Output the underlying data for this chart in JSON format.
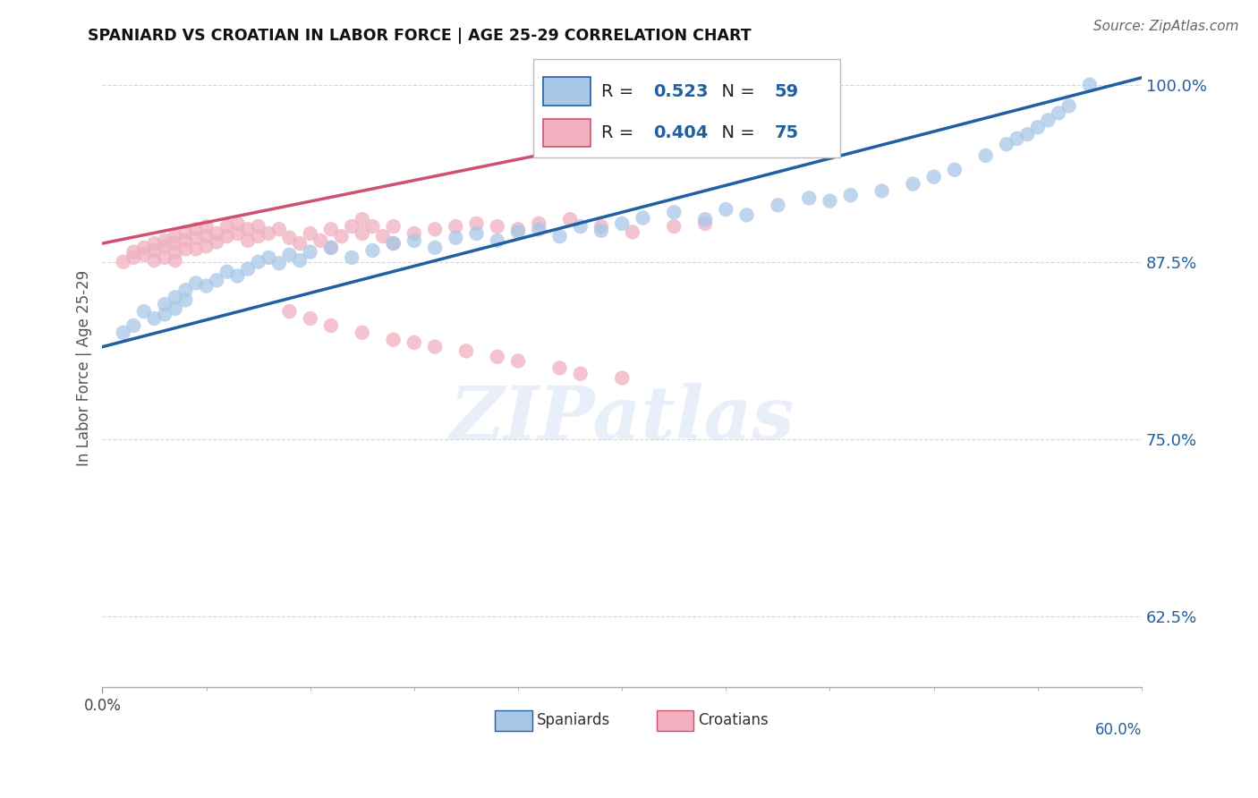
{
  "title": "SPANIARD VS CROATIAN IN LABOR FORCE | AGE 25-29 CORRELATION CHART",
  "source": "Source: ZipAtlas.com",
  "ylabel": "In Labor Force | Age 25-29",
  "xlim": [
    0.0,
    1.0
  ],
  "ylim": [
    0.575,
    1.025
  ],
  "yticks": [
    0.625,
    0.75,
    0.875,
    1.0
  ],
  "ytick_labels": [
    "62.5%",
    "75.0%",
    "87.5%",
    "100.0%"
  ],
  "background_color": "#ffffff",
  "grid_color": "#cccccc",
  "spaniards_color": "#a8c8e8",
  "croatians_color": "#f0b0c0",
  "spaniards_line_color": "#2060a0",
  "croatians_line_color": "#d05070",
  "R_spaniards": "0.523",
  "N_spaniards": "59",
  "R_croatians": "0.404",
  "N_croatians": "75",
  "legend_label_spaniards": "Spaniards",
  "legend_label_croatians": "Croatians",
  "watermark_text": "ZIPatlas",
  "spaniards_x": [
    0.02,
    0.03,
    0.04,
    0.05,
    0.06,
    0.06,
    0.07,
    0.07,
    0.08,
    0.08,
    0.09,
    0.1,
    0.11,
    0.12,
    0.13,
    0.14,
    0.15,
    0.16,
    0.17,
    0.18,
    0.19,
    0.2,
    0.22,
    0.24,
    0.26,
    0.28,
    0.3,
    0.32,
    0.34,
    0.36,
    0.38,
    0.4,
    0.42,
    0.44,
    0.46,
    0.48,
    0.5,
    0.52,
    0.55,
    0.58,
    0.6,
    0.62,
    0.65,
    0.68,
    0.7,
    0.72,
    0.75,
    0.78,
    0.8,
    0.82,
    0.85,
    0.87,
    0.88,
    0.89,
    0.9,
    0.91,
    0.92,
    0.93,
    0.95
  ],
  "spaniards_y": [
    0.825,
    0.83,
    0.84,
    0.835,
    0.845,
    0.838,
    0.85,
    0.842,
    0.848,
    0.855,
    0.86,
    0.858,
    0.862,
    0.868,
    0.865,
    0.87,
    0.875,
    0.878,
    0.874,
    0.88,
    0.876,
    0.882,
    0.885,
    0.878,
    0.883,
    0.888,
    0.89,
    0.885,
    0.892,
    0.895,
    0.89,
    0.896,
    0.898,
    0.893,
    0.9,
    0.897,
    0.902,
    0.906,
    0.91,
    0.905,
    0.912,
    0.908,
    0.915,
    0.92,
    0.918,
    0.922,
    0.925,
    0.93,
    0.935,
    0.94,
    0.95,
    0.958,
    0.962,
    0.965,
    0.97,
    0.975,
    0.98,
    0.985,
    1.0
  ],
  "croatians_x": [
    0.02,
    0.03,
    0.03,
    0.04,
    0.04,
    0.05,
    0.05,
    0.05,
    0.06,
    0.06,
    0.06,
    0.07,
    0.07,
    0.07,
    0.07,
    0.08,
    0.08,
    0.08,
    0.09,
    0.09,
    0.09,
    0.1,
    0.1,
    0.1,
    0.11,
    0.11,
    0.12,
    0.12,
    0.13,
    0.13,
    0.14,
    0.14,
    0.15,
    0.15,
    0.16,
    0.17,
    0.18,
    0.19,
    0.2,
    0.21,
    0.22,
    0.22,
    0.23,
    0.24,
    0.25,
    0.25,
    0.26,
    0.27,
    0.28,
    0.28,
    0.3,
    0.32,
    0.34,
    0.36,
    0.38,
    0.4,
    0.42,
    0.45,
    0.48,
    0.51,
    0.55,
    0.58,
    0.18,
    0.2,
    0.22,
    0.25,
    0.28,
    0.3,
    0.32,
    0.35,
    0.38,
    0.4,
    0.44,
    0.46,
    0.5
  ],
  "croatians_y": [
    0.875,
    0.878,
    0.882,
    0.885,
    0.88,
    0.888,
    0.883,
    0.876,
    0.89,
    0.886,
    0.878,
    0.893,
    0.888,
    0.882,
    0.876,
    0.896,
    0.89,
    0.884,
    0.898,
    0.892,
    0.884,
    0.9,
    0.893,
    0.886,
    0.895,
    0.889,
    0.9,
    0.893,
    0.902,
    0.895,
    0.898,
    0.89,
    0.9,
    0.893,
    0.895,
    0.898,
    0.892,
    0.888,
    0.895,
    0.89,
    0.898,
    0.885,
    0.893,
    0.9,
    0.905,
    0.895,
    0.9,
    0.893,
    0.9,
    0.888,
    0.895,
    0.898,
    0.9,
    0.902,
    0.9,
    0.898,
    0.902,
    0.905,
    0.9,
    0.896,
    0.9,
    0.902,
    0.84,
    0.835,
    0.83,
    0.825,
    0.82,
    0.818,
    0.815,
    0.812,
    0.808,
    0.805,
    0.8,
    0.796,
    0.793
  ]
}
